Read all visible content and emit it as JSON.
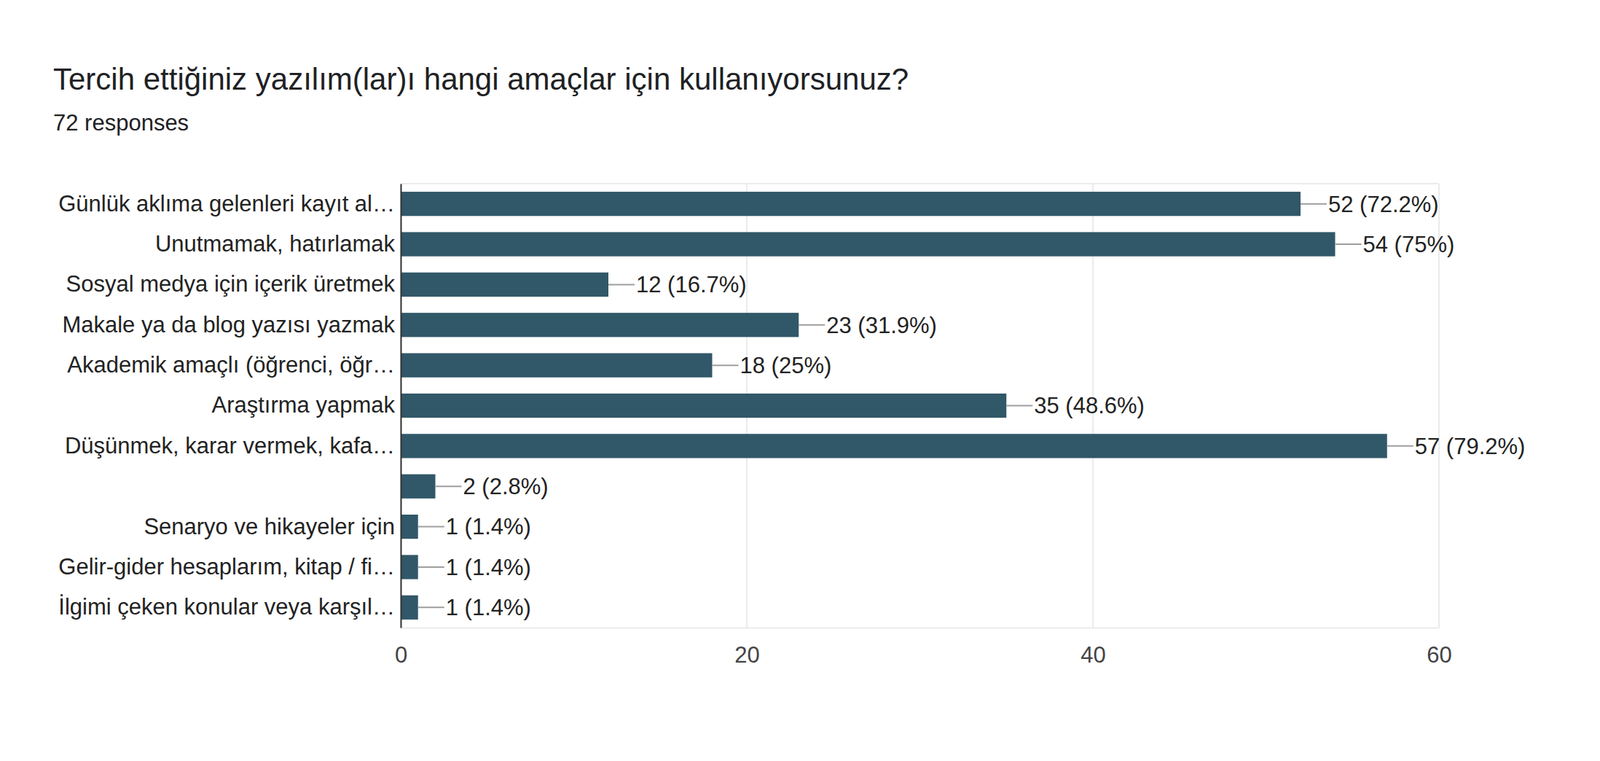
{
  "chart_data": {
    "type": "bar",
    "orientation": "horizontal",
    "title": "Tercih ettiğiniz yazılım(lar)ı hangi amaçlar için kullanıyorsunuz?",
    "subtitle": "72 responses",
    "categories": [
      "Günlük aklıma gelenleri kayıt al…",
      "Unutmamak, hatırlamak",
      "Sosyal medya için içerik üretmek",
      "Makale ya da blog yazısı yazmak",
      "Akademik amaçlı (öğrenci, öğr…",
      "Araştırma yapmak",
      "Düşünmek, karar vermek, kafa…",
      null,
      "Senaryo ve hikayeler için",
      "Gelir-gider hesaplarım, kitap / fi…",
      "İlgimi çeken konular veya karşıl…"
    ],
    "values": [
      52,
      54,
      12,
      23,
      18,
      35,
      57,
      2,
      1,
      1,
      1
    ],
    "value_labels": [
      "52 (72.2%)",
      "54 (75%)",
      "12 (16.7%)",
      "23 (31.9%)",
      "18 (25%)",
      "35 (48.6%)",
      "57 (79.2%)",
      "2 (2.8%)",
      "1 (1.4%)",
      "1 (1.4%)",
      "1 (1.4%)"
    ],
    "color": "#315868",
    "xlim": [
      0,
      60
    ],
    "xticks": [
      0,
      20,
      40,
      60
    ],
    "grid": true,
    "data_labels": true
  }
}
